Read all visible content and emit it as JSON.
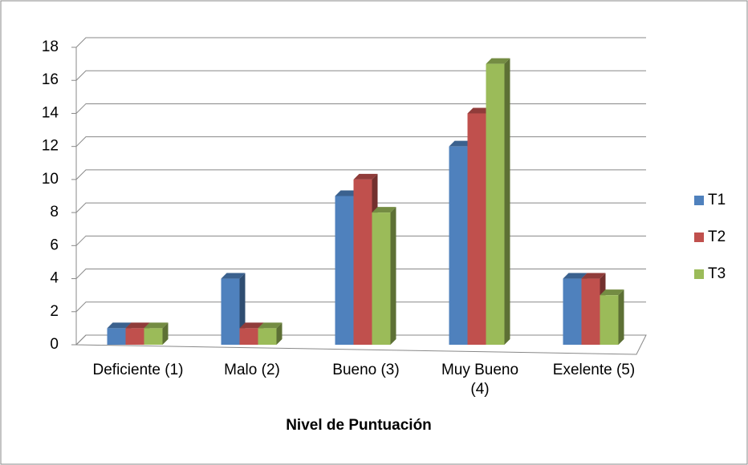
{
  "chart_data": {
    "type": "bar",
    "x_label": "Nivel de Puntuación",
    "categories": [
      "Deficiente (1)",
      "Malo (2)",
      "Bueno (3)",
      "Muy Bueno (4)",
      "Exelente (5)"
    ],
    "series": [
      {
        "name": "T1",
        "color": "#4f81bd",
        "values": [
          1,
          4,
          9,
          12,
          4
        ]
      },
      {
        "name": "T2",
        "color": "#c0504d",
        "values": [
          1,
          1,
          10,
          14,
          4
        ]
      },
      {
        "name": "T3",
        "color": "#9bbb59",
        "values": [
          1,
          1,
          8,
          17,
          3
        ]
      }
    ],
    "ylim": [
      0,
      18
    ],
    "yticks": [
      0,
      2,
      4,
      6,
      8,
      10,
      12,
      14,
      16,
      18
    ],
    "grid": true,
    "legend": "right"
  }
}
